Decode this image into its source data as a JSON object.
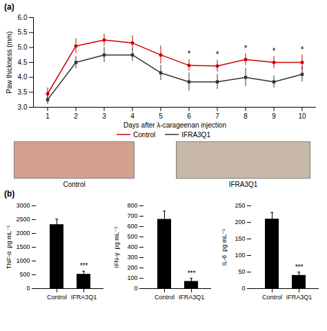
{
  "chart_data": [
    {
      "type": "line",
      "title": "(a)",
      "x": [
        1,
        2,
        3,
        4,
        5,
        6,
        7,
        8,
        9,
        10
      ],
      "xlabel": "Days after λ-carageenan injection",
      "ylabel": "Paw thickness (mm)",
      "xlim": [
        0.5,
        10.5
      ],
      "xticks": [
        1,
        2,
        3,
        4,
        5,
        6,
        7,
        8,
        9,
        10
      ],
      "ylim": [
        3.0,
        6.0
      ],
      "yticks": [
        {
          "value": 3.0,
          "label": "3.0"
        },
        3.5,
        {
          "value": 4.0,
          "label": "4.0"
        },
        4.5,
        {
          "value": 5.0,
          "label": "5.0"
        },
        5.5,
        {
          "value": 6.0,
          "label": "6.0"
        }
      ],
      "legend": "bottom",
      "series": [
        {
          "name": "Control",
          "color": "#cc0000",
          "marker": "circle",
          "values": [
            3.45,
            5.05,
            5.25,
            5.15,
            4.75,
            4.4,
            4.38,
            4.6,
            4.5,
            4.5
          ],
          "errors": [
            0.2,
            0.25,
            0.2,
            0.25,
            0.3,
            0.2,
            0.2,
            0.2,
            0.2,
            0.25
          ]
        },
        {
          "name": "IFRA3Q1",
          "color": "#333333",
          "marker": "square",
          "values": [
            3.25,
            4.5,
            4.75,
            4.75,
            4.15,
            3.85,
            3.85,
            4.0,
            3.85,
            4.1
          ],
          "errors": [
            0.15,
            0.2,
            0.25,
            0.2,
            0.25,
            0.3,
            0.25,
            0.3,
            0.2,
            0.25
          ]
        }
      ],
      "annotations": [
        {
          "x": 6,
          "text": "*"
        },
        {
          "x": 7,
          "text": "*"
        },
        {
          "x": 8,
          "text": "*"
        },
        {
          "x": 9,
          "text": "*"
        },
        {
          "x": 10,
          "text": "*"
        }
      ]
    },
    {
      "type": "image",
      "colors": [
        "#d4a090",
        "#c8b8a8"
      ],
      "annotations": [
        {
          "text": "Control"
        },
        {
          "text": "IFRA3Q1"
        }
      ]
    },
    {
      "type": "bar",
      "title": "(b)",
      "categories": [
        "Control",
        "IFRA3Q1"
      ],
      "values": [
        2320,
        520
      ],
      "errors": [
        200,
        110
      ],
      "color": "#000000",
      "ylabel": "TNF-α  pg mL⁻¹",
      "ylim": [
        0,
        3000
      ],
      "yticks": [
        0,
        500,
        1000,
        1500,
        2000,
        2500,
        3000
      ],
      "annotations": [
        {
          "category": "IFRA3Q1",
          "text": "***"
        }
      ]
    },
    {
      "type": "bar",
      "categories": [
        "Control",
        "IFRA3Q1"
      ],
      "values": [
        670,
        70
      ],
      "errors": [
        80,
        30
      ],
      "color": "#000000",
      "ylabel": "IFN-γ  pg mL⁻¹",
      "ylim": [
        0,
        800
      ],
      "yticks": [
        0,
        100,
        200,
        300,
        400,
        500,
        600,
        700,
        800
      ],
      "annotations": [
        {
          "category": "IFRA3Q1",
          "text": "***"
        }
      ]
    },
    {
      "type": "bar",
      "categories": [
        "Control",
        "IFRA3Q1"
      ],
      "values": [
        210,
        40
      ],
      "errors": [
        20,
        10
      ],
      "color": "#000000",
      "ylabel": "IL-6  pg mL⁻¹",
      "ylim": [
        0,
        250
      ],
      "yticks": [
        0,
        50,
        100,
        150,
        200,
        250
      ],
      "annotations": [
        {
          "category": "IFRA3Q1",
          "text": "***"
        }
      ]
    }
  ]
}
